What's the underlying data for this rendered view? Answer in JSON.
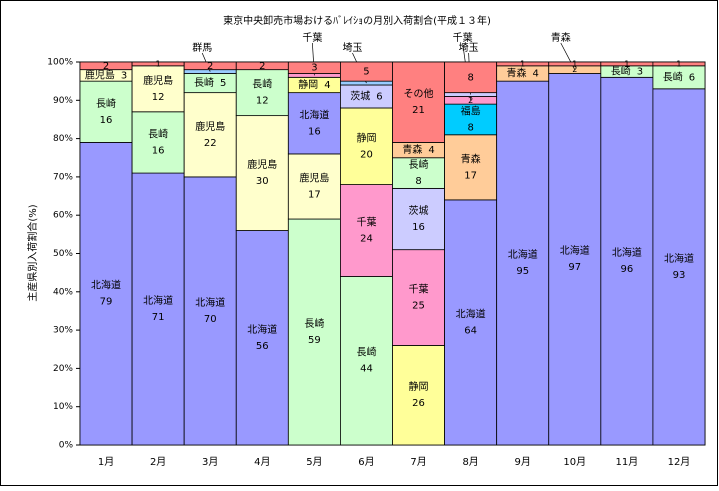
{
  "chart_data": {
    "type": "stacked-bar",
    "title": "東京中央卸売市場おけるﾊﾞﾚｲｼｮの月別入荷割合(平成１３年)",
    "y_label": "主産県別入荷割合(%)",
    "ylim": [
      0,
      100
    ],
    "yticks": [
      {
        "value": 0,
        "label": "0%"
      },
      {
        "value": 10,
        "label": "10%"
      },
      {
        "value": 20,
        "label": "20%"
      },
      {
        "value": 30,
        "label": "30%"
      },
      {
        "value": 40,
        "label": "40%"
      },
      {
        "value": 50,
        "label": "50%"
      },
      {
        "value": 60,
        "label": "60%"
      },
      {
        "value": 70,
        "label": "70%"
      },
      {
        "value": 80,
        "label": "80%"
      },
      {
        "value": 90,
        "label": "90%"
      },
      {
        "value": 100,
        "label": "100%"
      }
    ],
    "categories": [
      "1月",
      "2月",
      "3月",
      "4月",
      "5月",
      "6月",
      "7月",
      "8月",
      "9月",
      "10月",
      "11月",
      "12月"
    ],
    "bars": [
      {
        "segments": [
          {
            "name": "北海道",
            "value": 79,
            "color": "#9999ff"
          },
          {
            "name": "長崎",
            "value": 16,
            "color": "#ccffcc"
          },
          {
            "name": "鹿児島",
            "value": 3,
            "color": "#ffffcc"
          },
          {
            "value": 2,
            "color": "#ff8080"
          }
        ]
      },
      {
        "segments": [
          {
            "name": "北海道",
            "value": 71,
            "color": "#9999ff"
          },
          {
            "name": "長崎",
            "value": 16,
            "color": "#ccffcc"
          },
          {
            "name": "鹿児島",
            "value": 12,
            "color": "#ffffcc"
          },
          {
            "value": 1,
            "color": "#ff8080"
          }
        ]
      },
      {
        "segments": [
          {
            "name": "北海道",
            "value": 70,
            "color": "#9999ff"
          },
          {
            "name": "鹿児島",
            "value": 22,
            "color": "#ffffcc"
          },
          {
            "name": "長崎",
            "value": 5,
            "color": "#ccffcc"
          },
          {
            "name": "群馬",
            "value": 1,
            "color": "#99ccff"
          },
          {
            "value": 2,
            "color": "#ff8080"
          }
        ]
      },
      {
        "segments": [
          {
            "name": "北海道",
            "value": 56,
            "color": "#9999ff"
          },
          {
            "name": "鹿児島",
            "value": 30,
            "color": "#ffffcc"
          },
          {
            "name": "長崎",
            "value": 12,
            "color": "#ccffcc"
          },
          {
            "value": 2,
            "color": "#ff8080"
          }
        ]
      },
      {
        "segments": [
          {
            "name": "長崎",
            "value": 59,
            "color": "#ccffcc"
          },
          {
            "name": "鹿児島",
            "value": 17,
            "color": "#ffffcc"
          },
          {
            "name": "北海道",
            "value": 16,
            "color": "#9999ff"
          },
          {
            "name": "静岡",
            "value": 4,
            "color": "#ffff99"
          },
          {
            "name": "千葉",
            "value": 1,
            "color": "#ff99cc"
          },
          {
            "value": 3,
            "color": "#ff8080"
          }
        ]
      },
      {
        "segments": [
          {
            "name": "長崎",
            "value": 44,
            "color": "#ccffcc"
          },
          {
            "name": "千葉",
            "value": 24,
            "color": "#ff99cc"
          },
          {
            "name": "静岡",
            "value": 20,
            "color": "#ffff99"
          },
          {
            "name": "茨城",
            "value": 6,
            "color": "#ccccff"
          },
          {
            "name": "埼玉",
            "value": 1,
            "color": "#99ccff"
          },
          {
            "value": 5,
            "color": "#ff8080"
          }
        ]
      },
      {
        "segments": [
          {
            "name": "静岡",
            "value": 26,
            "color": "#ffff99"
          },
          {
            "name": "千葉",
            "value": 25,
            "color": "#ff99cc"
          },
          {
            "name": "茨城",
            "value": 16,
            "color": "#ccccff"
          },
          {
            "name": "長崎",
            "value": 8,
            "color": "#ccffcc"
          },
          {
            "name": "青森",
            "value": 4,
            "color": "#ffcc99"
          },
          {
            "name": "その他",
            "value": 21,
            "color": "#ff8080"
          }
        ]
      },
      {
        "segments": [
          {
            "name": "北海道",
            "value": 64,
            "color": "#9999ff"
          },
          {
            "name": "青森",
            "value": 17,
            "color": "#ffcc99"
          },
          {
            "name": "福島",
            "value": 8,
            "color": "#00ccff"
          },
          {
            "name": "千葉",
            "value": 2,
            "color": "#ff99cc"
          },
          {
            "name": "埼玉",
            "value": 1,
            "color": "#ccccff"
          },
          {
            "value": 8,
            "color": "#ff8080"
          }
        ]
      },
      {
        "segments": [
          {
            "name": "北海道",
            "value": 95,
            "color": "#9999ff"
          },
          {
            "name": "青森",
            "value": 4,
            "color": "#ffcc99"
          },
          {
            "value": 1,
            "color": "#ff8080"
          }
        ]
      },
      {
        "segments": [
          {
            "name": "北海道",
            "value": 97,
            "color": "#9999ff"
          },
          {
            "name": "青森",
            "value": 2,
            "color": "#ffcc99"
          },
          {
            "value": 1,
            "color": "#ff8080"
          }
        ]
      },
      {
        "segments": [
          {
            "name": "北海道",
            "value": 96,
            "color": "#9999ff"
          },
          {
            "name": "長崎",
            "value": 3,
            "color": "#ccffcc"
          },
          {
            "value": 1,
            "color": "#ff8080"
          }
        ]
      },
      {
        "segments": [
          {
            "name": "北海道",
            "value": 93,
            "color": "#9999ff"
          },
          {
            "name": "長崎",
            "value": 6,
            "color": "#ccffcc"
          },
          {
            "value": 1,
            "color": "#ff8080"
          }
        ]
      }
    ]
  }
}
